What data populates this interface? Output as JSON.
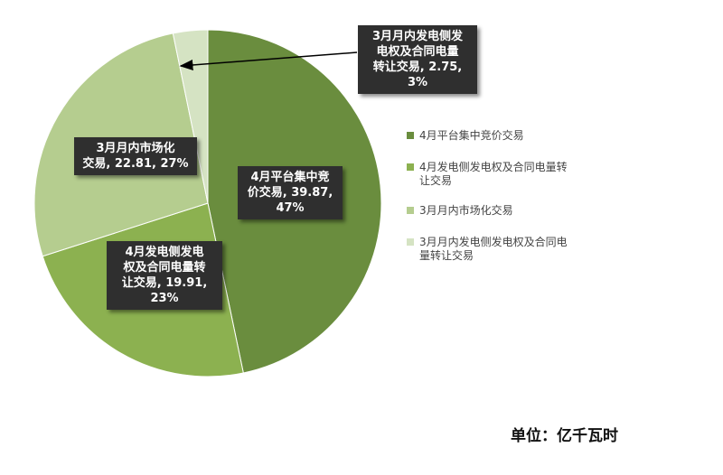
{
  "chart_data": {
    "type": "pie",
    "unit_label": "单位：亿千瓦时",
    "slices": [
      {
        "name": "4月平台集中竞价交易",
        "value": 39.87,
        "percent": "47%",
        "color": "#6a8d3e",
        "label_lines": [
          "4月平台集中竞",
          "价交易, 39.87,",
          "47%"
        ]
      },
      {
        "name": "4月发电侧发电权及合同电量转让交易",
        "value": 19.91,
        "percent": "23%",
        "color": "#8cb150",
        "label_lines": [
          "4月发电侧发电",
          "权及合同电量转",
          "让交易, 19.91,",
          "23%"
        ]
      },
      {
        "name": "3月月内市场化交易",
        "value": 22.81,
        "percent": "27%",
        "color": "#b5cd8f",
        "label_lines": [
          "3月月内市场化",
          "交易, 22.81, 27%"
        ]
      },
      {
        "name": "3月月内发电侧发电权及合同电量转让交易",
        "value": 2.75,
        "percent": "3%",
        "color": "#d5e3c3",
        "label_lines": [
          "3月月内发电侧发",
          "电权及合同电量",
          "转让交易, 2.75,",
          "3%"
        ]
      }
    ],
    "legend": {
      "items": [
        {
          "lines": [
            "4月平台集中竞价交易"
          ]
        },
        {
          "lines": [
            "4月发电侧发电权及合同电量转",
            "让交易"
          ]
        },
        {
          "lines": [
            "3月月内市场化交易"
          ]
        },
        {
          "lines": [
            "3月月内发电侧发电权及合同电",
            "量转让交易"
          ]
        }
      ]
    }
  }
}
